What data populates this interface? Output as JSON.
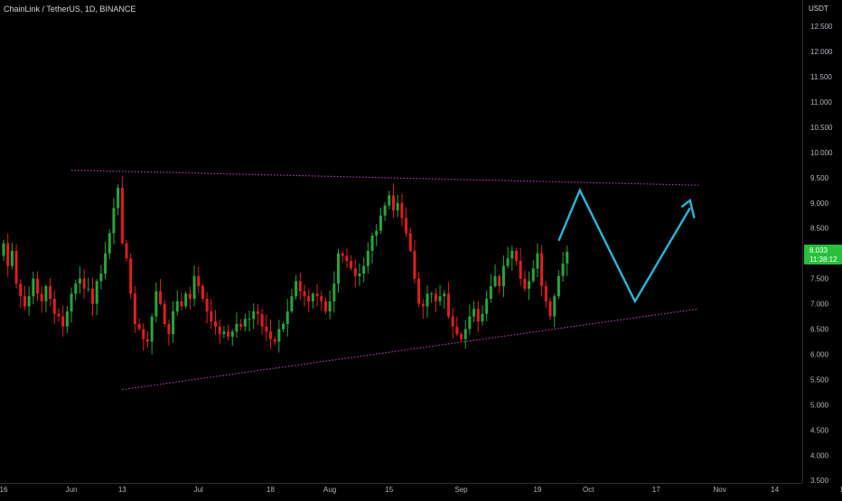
{
  "header": {
    "symbol_title": "ChainLink / TetherUS, 1D, BINANCE"
  },
  "price_scale": {
    "currency": "USDT",
    "last_price_label": "8.033",
    "countdown_label": "11:38:12",
    "last_price_color": "#26c13a"
  },
  "colors": {
    "up": "#26a63a",
    "down": "#e01e1e",
    "trendline": "#c040c0",
    "projection": "#29b6d6",
    "axis_text": "#b2b5be",
    "background": "#000000"
  },
  "chart_data": {
    "type": "candlestick",
    "x_axis": {
      "ticks": [
        {
          "label": "16",
          "date": "2021-05-16"
        },
        {
          "label": "Jun",
          "date": "2021-06-01"
        },
        {
          "label": "13",
          "date": "2021-06-13"
        },
        {
          "label": "Jul",
          "date": "2021-07-01"
        },
        {
          "label": "18",
          "date": "2021-07-18"
        },
        {
          "label": "Aug",
          "date": "2021-08-01"
        },
        {
          "label": "15",
          "date": "2021-08-15"
        },
        {
          "label": "Sep",
          "date": "2021-09-01"
        },
        {
          "label": "19",
          "date": "2021-09-19"
        },
        {
          "label": "Oct",
          "date": "2021-10-01"
        },
        {
          "label": "17",
          "date": "2021-10-17"
        },
        {
          "label": "Nov",
          "date": "2021-11-01"
        },
        {
          "label": "14",
          "date": "2021-11-14"
        },
        {
          "label": "Dec",
          "date": "2021-12-01"
        }
      ]
    },
    "y_axis": {
      "ticks": [
        "12.500",
        "12.000",
        "11.500",
        "11.000",
        "10.500",
        "10.000",
        "9.500",
        "9.000",
        "8.500",
        "8.000",
        "7.500",
        "7.000",
        "6.500",
        "6.000",
        "5.500",
        "5.000",
        "4.500",
        "4.000",
        "3.500"
      ],
      "range": [
        3.45,
        12.95
      ]
    },
    "closes": [
      8.2,
      7.75,
      8.05,
      7.4,
      7.15,
      6.95,
      7.15,
      7.5,
      7.2,
      7.05,
      7.35,
      7.1,
      6.8,
      6.75,
      6.55,
      6.85,
      7.2,
      7.4,
      7.5,
      7.3,
      7.3,
      7.0,
      7.45,
      7.6,
      8.0,
      8.4,
      8.9,
      9.3,
      8.2,
      7.9,
      7.2,
      6.6,
      6.5,
      6.3,
      6.25,
      6.75,
      7.25,
      7.0,
      6.6,
      6.4,
      6.85,
      7.05,
      6.95,
      7.2,
      7.1,
      7.55,
      7.35,
      7.1,
      6.85,
      6.65,
      6.55,
      6.4,
      6.45,
      6.35,
      6.45,
      6.6,
      6.55,
      6.7,
      6.7,
      6.85,
      6.8,
      6.55,
      6.45,
      6.3,
      6.25,
      6.5,
      6.6,
      6.85,
      7.15,
      7.45,
      7.25,
      7.15,
      7.05,
      7.2,
      7.15,
      7.05,
      6.85,
      7.05,
      7.4,
      8.0,
      7.95,
      7.85,
      7.7,
      7.55,
      7.6,
      7.75,
      8.05,
      8.35,
      8.45,
      8.75,
      8.95,
      9.15,
      8.85,
      9.0,
      8.7,
      8.4,
      8.05,
      7.5,
      7.0,
      6.95,
      7.2,
      7.2,
      7.05,
      7.15,
      7.2,
      6.75,
      6.55,
      6.4,
      6.3,
      6.5,
      6.75,
      6.9,
      6.65,
      6.8,
      7.1,
      7.35,
      7.55,
      7.35,
      7.75,
      7.9,
      8.05,
      7.85,
      7.5,
      7.3,
      7.45,
      7.7,
      8.0,
      7.35,
      7.05,
      6.75,
      7.15,
      7.55,
      7.8,
      8.033
    ],
    "projection_path": [
      {
        "date": "2021-09-24",
        "price": 8.25
      },
      {
        "date": "2021-09-29",
        "price": 9.25
      },
      {
        "date": "2021-10-12",
        "price": 7.05
      },
      {
        "date": "2021-10-25",
        "price": 8.9
      }
    ],
    "arrowhead": [
      {
        "date": "2021-10-23",
        "price": 8.92
      },
      {
        "date": "2021-10-25",
        "price": 9.05
      },
      {
        "date": "2021-10-26",
        "price": 8.7
      }
    ],
    "trendlines": [
      {
        "name": "resistance",
        "from": {
          "date": "2021-06-01",
          "price": 9.65
        },
        "to": {
          "date": "2021-10-27",
          "price": 9.35
        }
      },
      {
        "name": "support",
        "from": {
          "date": "2021-06-13",
          "price": 5.3
        },
        "to": {
          "date": "2021-10-27",
          "price": 6.9
        }
      }
    ],
    "start_date": "2021-05-16",
    "grid": false
  }
}
